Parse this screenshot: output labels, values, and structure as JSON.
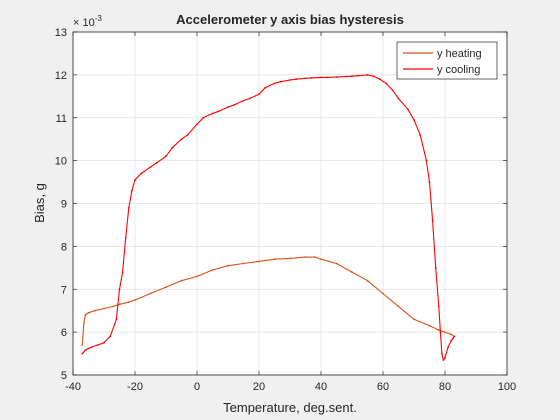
{
  "chart_data": {
    "type": "line",
    "title": "Accelerometer y axis bias hysteresis",
    "xlabel": "Temperature, deg.sent.",
    "ylabel": "Bias, g",
    "exponent_label": "× 10",
    "exponent_power": "-3",
    "xlim": [
      -40,
      100
    ],
    "ylim": [
      5,
      13
    ],
    "x_ticks": [
      -40,
      -20,
      0,
      20,
      40,
      60,
      80,
      100
    ],
    "y_ticks": [
      5,
      6,
      7,
      8,
      9,
      10,
      11,
      12,
      13
    ],
    "grid": true,
    "legend_position": "top-right",
    "series": [
      {
        "name": "y heating",
        "color": "#d95319",
        "x": [
          -37,
          -36.5,
          -36,
          -35,
          -33,
          -30,
          -27,
          -25,
          -22,
          -20,
          -15,
          -10,
          -5,
          0,
          5,
          10,
          15,
          20,
          25,
          30,
          35,
          38,
          40,
          45,
          50,
          55,
          60,
          65,
          70,
          75,
          78,
          80,
          82,
          83
        ],
        "y": [
          5.7,
          6.2,
          6.4,
          6.45,
          6.5,
          6.55,
          6.6,
          6.65,
          6.7,
          6.75,
          6.9,
          7.05,
          7.2,
          7.3,
          7.45,
          7.55,
          7.6,
          7.65,
          7.7,
          7.72,
          7.75,
          7.75,
          7.7,
          7.6,
          7.4,
          7.2,
          6.9,
          6.6,
          6.3,
          6.15,
          6.05,
          6.0,
          5.95,
          5.9
        ]
      },
      {
        "name": "y cooling",
        "color": "#ff0000",
        "x": [
          83,
          82.5,
          82,
          81,
          80,
          79.5,
          79,
          78.5,
          78,
          77,
          76,
          75,
          74,
          72,
          70,
          68,
          65,
          63,
          61,
          59,
          57,
          55,
          52,
          50,
          48,
          45,
          42,
          40,
          37,
          35,
          32,
          30,
          27,
          25,
          22,
          20,
          17,
          15,
          12,
          10,
          7,
          5,
          2,
          0,
          -3,
          -5,
          -8,
          -10,
          -13,
          -15,
          -18,
          -20,
          -21,
          -22,
          -23,
          -24,
          -25,
          -26,
          -28,
          -30,
          -32,
          -34,
          -35,
          -36,
          -37
        ],
        "y": [
          5.9,
          5.85,
          5.8,
          5.65,
          5.4,
          5.35,
          5.5,
          6.0,
          6.6,
          7.5,
          8.6,
          9.5,
          10.0,
          10.6,
          10.95,
          11.2,
          11.45,
          11.65,
          11.8,
          11.9,
          11.97,
          12.0,
          11.98,
          11.97,
          11.96,
          11.95,
          11.94,
          11.94,
          11.93,
          11.92,
          11.9,
          11.88,
          11.84,
          11.8,
          11.7,
          11.55,
          11.45,
          11.4,
          11.3,
          11.25,
          11.15,
          11.1,
          11.0,
          10.85,
          10.6,
          10.5,
          10.3,
          10.1,
          9.95,
          9.85,
          9.7,
          9.55,
          9.3,
          8.9,
          8.2,
          7.4,
          7.0,
          6.3,
          5.9,
          5.75,
          5.7,
          5.65,
          5.62,
          5.58,
          5.5
        ]
      }
    ]
  }
}
